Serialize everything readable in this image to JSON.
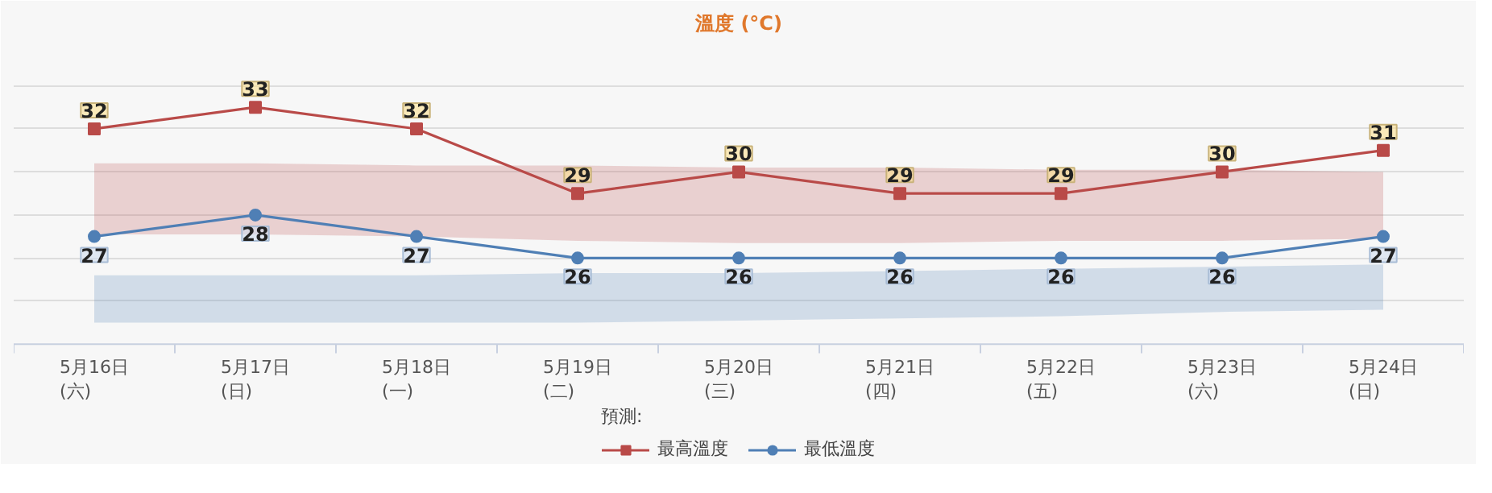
{
  "chart_data": {
    "type": "line",
    "title": "溫度 (°C)",
    "legend_title": "預測:",
    "categories": [
      "5月16日\n(六)",
      "5月17日\n(日)",
      "5月18日\n(一)",
      "5月19日\n(二)",
      "5月20日\n(三)",
      "5月21日\n(四)",
      "5月22日\n(五)",
      "5月23日\n(六)",
      "5月24日\n(日)"
    ],
    "series": [
      {
        "name": "最高溫度",
        "color": "#b94a48",
        "marker": "square",
        "values": [
          32,
          33,
          32,
          29,
          30,
          29,
          29,
          30,
          31
        ],
        "lower": [
          27.1,
          27.1,
          27.0,
          26.8,
          26.7,
          26.7,
          26.8,
          26.8,
          26.9
        ],
        "upper": [
          30.4,
          30.4,
          30.3,
          30.3,
          30.2,
          30.2,
          30.1,
          30.1,
          30.0
        ]
      },
      {
        "name": "最低溫度",
        "color": "#4f7fb5",
        "marker": "circle",
        "values": [
          27,
          28,
          27,
          26,
          26,
          26,
          26,
          26,
          27
        ],
        "lower": [
          23.0,
          23.0,
          23.0,
          23.0,
          23.1,
          23.2,
          23.3,
          23.5,
          23.6
        ],
        "upper": [
          25.2,
          25.2,
          25.2,
          25.3,
          25.3,
          25.4,
          25.5,
          25.6,
          25.7
        ]
      }
    ],
    "ylim": [
      22,
      36
    ],
    "yticks": [
      {
        "value": 24,
        "label": null
      },
      {
        "value": 26,
        "label": null
      },
      {
        "value": 28,
        "label": null
      },
      {
        "value": 30,
        "label": null
      },
      {
        "value": 32,
        "label": null
      },
      {
        "value": 34,
        "label": null
      },
      {
        "value": 36,
        "label": null
      }
    ],
    "tick_labels": "x",
    "grid": "y",
    "legend": "bottom",
    "data_labels": true,
    "line_style": "solid"
  }
}
